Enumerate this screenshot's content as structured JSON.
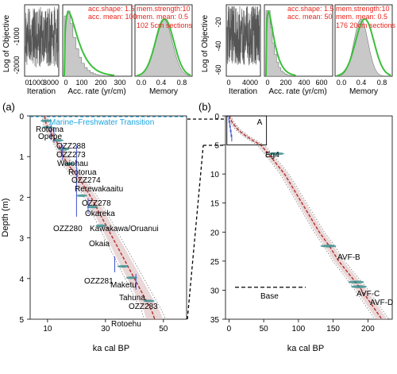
{
  "colors": {
    "trace": "#555555",
    "hist_fill": "#c8c8c8",
    "prior": "#3cbf3c",
    "settings": "#e8241c",
    "transition": "#1aa3dd",
    "age_model": "#b03030",
    "envelope": "#d9b7b7",
    "date": "#3c4fd0",
    "tephra": "#2e8b8b"
  },
  "panel_labels": {
    "a": "(a)",
    "b": "(b)"
  },
  "insets": {
    "a": {
      "ylabel": "Log of Objective",
      "trace": {
        "xlabel": "Iteration",
        "xticks": [
          "0",
          "1000",
          "3000"
        ],
        "yticks": [
          "-1000",
          "-2000"
        ]
      },
      "accrate": {
        "xlabel": "Acc. rate (yr/cm)",
        "xticks": [
          "0",
          "100",
          "200",
          "300"
        ],
        "lines": [
          "acc.shape: 1.5",
          "acc. mean: 100"
        ]
      },
      "memory": {
        "xlabel": "Memory",
        "xticks": [
          "0.0",
          "0.4",
          "0.8"
        ],
        "lines": [
          "mem.strength:10",
          "mem. mean: 0.5",
          "102 5cm sections"
        ]
      }
    },
    "b": {
      "ylabel": "Log of Objective",
      "trace": {
        "xlabel": "Iteration",
        "xticks": [
          "0",
          "4000"
        ],
        "yticks": [
          "-20",
          "-40",
          "-60"
        ]
      },
      "accrate": {
        "xlabel": "Acc. rate (yr/cm)",
        "xticks": [
          "0",
          "200",
          "400",
          "600"
        ],
        "lines": [
          "acc.shape: 1.5",
          "acc. mean: 50"
        ]
      },
      "memory": {
        "xlabel": "Memory",
        "xticks": [
          "0.0",
          "0.4",
          "0.8"
        ],
        "lines": [
          "mem.strength:10",
          "mem. mean: 0.5",
          "176 20cm sections"
        ]
      }
    }
  },
  "chart_data": [
    {
      "panel": "(a)",
      "type": "line",
      "title": "",
      "xlabel": "ka cal BP",
      "ylabel": "Depth (m)",
      "xlim": [
        4,
        58
      ],
      "ylim": [
        5,
        0
      ],
      "xticks": [
        10,
        30,
        50
      ],
      "yticks": [
        0,
        1,
        2,
        3,
        4,
        5
      ],
      "transition_label": "Marine–Freshwater Transition",
      "transition_depth": 0.02,
      "age_model": {
        "depth": [
          0,
          0.2,
          0.4,
          0.6,
          0.8,
          1.0,
          1.2,
          1.4,
          1.6,
          2.0,
          2.4,
          2.8,
          3.2,
          3.6,
          4.0,
          4.4,
          4.8,
          5.0
        ],
        "age": [
          9,
          9.5,
          11,
          12.8,
          14.5,
          15.5,
          17,
          19.5,
          21.5,
          25,
          28,
          31,
          34,
          37,
          40,
          43,
          46,
          47
        ]
      },
      "tephra_labels": [
        "Rotoma",
        "Opepe",
        "OZZ288",
        "OZZ273",
        "Waiohau",
        "Rotorua",
        "OZZ274",
        "Rerewakaaitu",
        "OZZ278",
        "Okareka",
        "OZZ280",
        "Kawakawa/Oruanui",
        "Okaia",
        "OZZ281",
        "Maketu",
        "Tahuna",
        "OZZ283",
        "Rotoehu"
      ],
      "tephras": [
        {
          "name": "Rotoma",
          "depth": 0.12,
          "age": 9.5
        },
        {
          "name": "Opepe",
          "depth": 0.28,
          "age": 10.0
        },
        {
          "name": "Waiohau",
          "depth": 0.6,
          "age": 13.6
        },
        {
          "name": "Rotorua",
          "depth": 0.82,
          "age": 15.6
        },
        {
          "name": "Rerewakaaitu",
          "depth": 1.18,
          "age": 17.6
        },
        {
          "name": "Okareka",
          "depth": 1.96,
          "age": 21.8
        },
        {
          "name": "Kawakawa/Oruanui",
          "depth": 2.24,
          "age": 25.5
        },
        {
          "name": "Okaia",
          "depth": 2.7,
          "age": 28.5
        },
        {
          "name": "Maketu",
          "depth": 3.7,
          "age": 36.0
        },
        {
          "name": "Tahuna",
          "depth": 3.98,
          "age": 39.0
        },
        {
          "name": "Rotoehu",
          "depth": 4.55,
          "age": 45.0
        }
      ],
      "radiocarbon": [
        {
          "name": "OZZ288",
          "depth": 0.4,
          "age": 11.2
        },
        {
          "name": "OZZ273",
          "depth": 0.47,
          "age": 12.2
        },
        {
          "name": "OZZ274",
          "depth": 0.9,
          "age": 15.2
        },
        {
          "name": "OZZ278",
          "depth": 1.6,
          "age": 20.0
        },
        {
          "name": "OZZ280",
          "depth": 2.22,
          "age": 24.0
        },
        {
          "name": "OZZ281",
          "depth": 3.65,
          "age": 33.2
        },
        {
          "name": "OZZ283",
          "depth": 4.08,
          "age": 40.5
        }
      ]
    },
    {
      "panel": "(b)",
      "type": "line",
      "title": "",
      "xlabel": "ka cal BP",
      "ylabel": "",
      "xlim": [
        -5,
        235
      ],
      "ylim": [
        35,
        0
      ],
      "xticks": [
        0,
        50,
        100,
        150,
        200
      ],
      "yticks": [
        0,
        5,
        10,
        15,
        20,
        25,
        30,
        35
      ],
      "inset_box_label": "A",
      "base_label": "Base",
      "base_depth": 29.5,
      "age_model": {
        "depth": [
          0,
          1.2,
          2.5,
          3.5,
          4.5,
          5.0,
          7.0,
          10.0,
          15.0,
          20.0,
          22.5,
          25.0,
          28.0,
          29.5,
          35.0
        ],
        "age": [
          0,
          5,
          14,
          25,
          38,
          46,
          60,
          80,
          105,
          130,
          145,
          158,
          178,
          188,
          220
        ]
      },
      "tephras": [
        {
          "name": "Eg4",
          "depth": 6.5,
          "age": 68
        },
        {
          "name": "AVF-B",
          "depth": 22.4,
          "age": 143
        },
        {
          "name": "AVF-C",
          "depth": 28.6,
          "age": 183
        },
        {
          "name": "AVF-D",
          "depth": 29.4,
          "age": 187
        }
      ]
    }
  ]
}
